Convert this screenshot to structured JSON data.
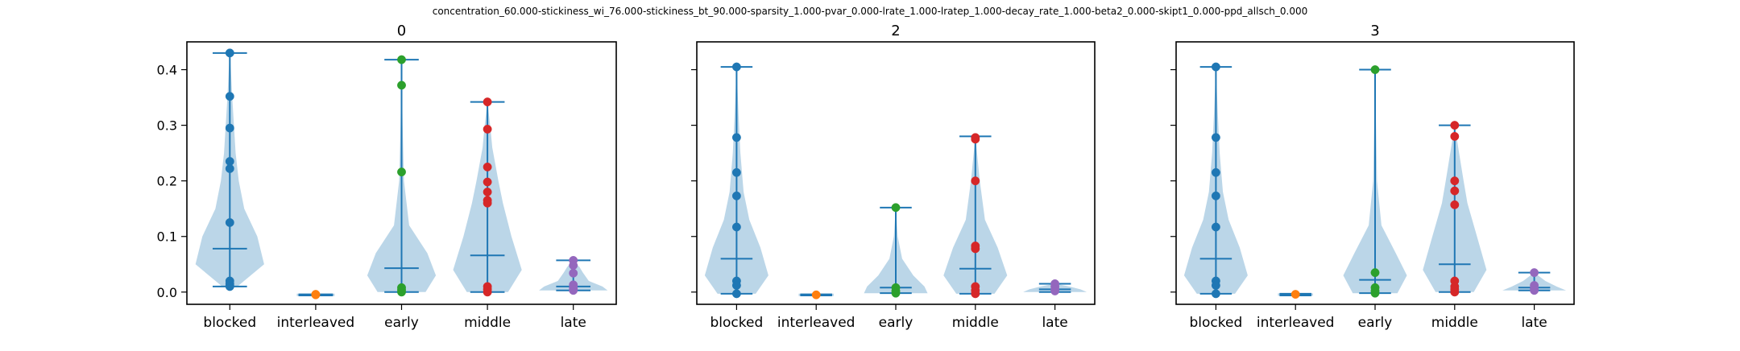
{
  "figure": {
    "suptitle": "concentration_60.000-stickiness_wi_76.000-stickiness_bt_90.000-sparsity_1.000-pvar_0.000-lrate_1.000-lratep_1.000-decay_rate_1.000-beta2_0.000-skipt1_0.000-ppd_allsch_0.000"
  },
  "chart_data": [
    {
      "type": "violin",
      "title": "0",
      "categories": [
        "blocked",
        "interleaved",
        "early",
        "middle",
        "late"
      ],
      "ylim": [
        -0.022,
        0.45
      ],
      "yticks": [
        0.0,
        0.1,
        0.2,
        0.3,
        0.4
      ],
      "ytick_labels": [
        "0.0",
        "0.1",
        "0.2",
        "0.3",
        "0.4"
      ],
      "show_ytick_labels": true,
      "grid": false,
      "colors": [
        "#1f77b4",
        "#ff7f0e",
        "#2ca02c",
        "#d62728",
        "#9467bd"
      ],
      "series": [
        {
          "min": 0.01,
          "max": 0.43,
          "mean": 0.078,
          "points": [
            0.43,
            0.352,
            0.295,
            0.235,
            0.222,
            0.125,
            0.02,
            0.015,
            0.012,
            0.01
          ],
          "density": [
            [
              0.01,
              0.22
            ],
            [
              0.05,
              1.0
            ],
            [
              0.1,
              0.8
            ],
            [
              0.15,
              0.42
            ],
            [
              0.2,
              0.26
            ],
            [
              0.25,
              0.17
            ],
            [
              0.3,
              0.12
            ],
            [
              0.35,
              0.07
            ],
            [
              0.4,
              0.03
            ],
            [
              0.43,
              0.0
            ]
          ]
        },
        {
          "min": -0.006,
          "max": -0.004,
          "mean": -0.005,
          "points": [
            -0.005,
            -0.004
          ],
          "density": [
            [
              -0.006,
              1.0
            ],
            [
              -0.004,
              1.0
            ]
          ]
        },
        {
          "min": 0.0,
          "max": 0.418,
          "mean": 0.043,
          "points": [
            0.418,
            0.372,
            0.216,
            0.008,
            0.004,
            0.0
          ],
          "density": [
            [
              0.0,
              0.7
            ],
            [
              0.03,
              1.0
            ],
            [
              0.07,
              0.75
            ],
            [
              0.12,
              0.22
            ],
            [
              0.2,
              0.07
            ],
            [
              0.3,
              0.03
            ],
            [
              0.418,
              0.0
            ]
          ]
        },
        {
          "min": 0.0,
          "max": 0.342,
          "mean": 0.066,
          "points": [
            0.342,
            0.293,
            0.225,
            0.198,
            0.18,
            0.165,
            0.16,
            0.01,
            0.005,
            0.0
          ],
          "density": [
            [
              0.0,
              0.6
            ],
            [
              0.04,
              1.0
            ],
            [
              0.1,
              0.7
            ],
            [
              0.16,
              0.45
            ],
            [
              0.2,
              0.32
            ],
            [
              0.26,
              0.14
            ],
            [
              0.3,
              0.08
            ],
            [
              0.342,
              0.0
            ]
          ]
        },
        {
          "min": 0.003,
          "max": 0.057,
          "mean": 0.01,
          "points": [
            0.057,
            0.048,
            0.034,
            0.013,
            0.008,
            0.005,
            0.003
          ],
          "density": [
            [
              0.003,
              1.0
            ],
            [
              0.01,
              0.85
            ],
            [
              0.02,
              0.45
            ],
            [
              0.035,
              0.28
            ],
            [
              0.045,
              0.18
            ],
            [
              0.057,
              0.0
            ]
          ]
        }
      ]
    },
    {
      "type": "violin",
      "title": "2",
      "categories": [
        "blocked",
        "interleaved",
        "early",
        "middle",
        "late"
      ],
      "ylim": [
        -0.022,
        0.45
      ],
      "yticks": [
        0.0,
        0.1,
        0.2,
        0.3,
        0.4
      ],
      "ytick_labels": [
        "0.0",
        "0.1",
        "0.2",
        "0.3",
        "0.4"
      ],
      "show_ytick_labels": false,
      "grid": false,
      "colors": [
        "#1f77b4",
        "#ff7f0e",
        "#2ca02c",
        "#d62728",
        "#9467bd"
      ],
      "series": [
        {
          "min": -0.003,
          "max": 0.405,
          "mean": 0.06,
          "points": [
            0.405,
            0.278,
            0.215,
            0.173,
            0.117,
            0.02,
            0.012,
            -0.003
          ],
          "density": [
            [
              -0.003,
              0.6
            ],
            [
              0.03,
              1.0
            ],
            [
              0.08,
              0.75
            ],
            [
              0.13,
              0.4
            ],
            [
              0.18,
              0.22
            ],
            [
              0.25,
              0.12
            ],
            [
              0.32,
              0.06
            ],
            [
              0.405,
              0.0
            ]
          ]
        },
        {
          "min": -0.006,
          "max": -0.004,
          "mean": -0.005,
          "points": [
            -0.005
          ],
          "density": [
            [
              -0.006,
              1.0
            ],
            [
              -0.004,
              1.0
            ]
          ]
        },
        {
          "min": -0.002,
          "max": 0.152,
          "mean": 0.008,
          "points": [
            0.152,
            0.008,
            0.002,
            -0.002
          ],
          "density": [
            [
              -0.002,
              1.0
            ],
            [
              0.01,
              0.9
            ],
            [
              0.03,
              0.55
            ],
            [
              0.06,
              0.2
            ],
            [
              0.1,
              0.06
            ],
            [
              0.152,
              0.0
            ]
          ]
        },
        {
          "min": -0.003,
          "max": 0.28,
          "mean": 0.042,
          "points": [
            0.278,
            0.275,
            0.2,
            0.083,
            0.078,
            0.01,
            0.003,
            -0.003
          ],
          "density": [
            [
              -0.003,
              0.6
            ],
            [
              0.03,
              1.0
            ],
            [
              0.08,
              0.7
            ],
            [
              0.13,
              0.3
            ],
            [
              0.2,
              0.14
            ],
            [
              0.28,
              0.0
            ]
          ]
        },
        {
          "min": 0.0,
          "max": 0.015,
          "mean": 0.005,
          "points": [
            0.015,
            0.01,
            0.005,
            0.002
          ],
          "density": [
            [
              0.0,
              1.0
            ],
            [
              0.005,
              0.8
            ],
            [
              0.01,
              0.45
            ],
            [
              0.015,
              0.0
            ]
          ]
        }
      ]
    },
    {
      "type": "violin",
      "title": "3",
      "categories": [
        "blocked",
        "interleaved",
        "early",
        "middle",
        "late"
      ],
      "ylim": [
        -0.022,
        0.45
      ],
      "yticks": [
        0.0,
        0.1,
        0.2,
        0.3,
        0.4
      ],
      "ytick_labels": [
        "0.0",
        "0.1",
        "0.2",
        "0.3",
        "0.4"
      ],
      "show_ytick_labels": false,
      "grid": false,
      "colors": [
        "#1f77b4",
        "#ff7f0e",
        "#2ca02c",
        "#d62728",
        "#9467bd"
      ],
      "series": [
        {
          "min": -0.003,
          "max": 0.405,
          "mean": 0.06,
          "points": [
            0.405,
            0.278,
            0.215,
            0.173,
            0.117,
            0.02,
            0.012,
            -0.003
          ],
          "density": [
            [
              -0.003,
              0.6
            ],
            [
              0.03,
              1.0
            ],
            [
              0.08,
              0.75
            ],
            [
              0.13,
              0.4
            ],
            [
              0.18,
              0.22
            ],
            [
              0.25,
              0.12
            ],
            [
              0.32,
              0.06
            ],
            [
              0.405,
              0.0
            ]
          ]
        },
        {
          "min": -0.006,
          "max": -0.003,
          "mean": -0.004,
          "points": [
            -0.004
          ],
          "density": [
            [
              -0.006,
              1.0
            ],
            [
              -0.003,
              1.0
            ]
          ]
        },
        {
          "min": -0.002,
          "max": 0.4,
          "mean": 0.022,
          "points": [
            0.4,
            0.035,
            0.008,
            0.002,
            -0.002
          ],
          "density": [
            [
              -0.002,
              0.7
            ],
            [
              0.03,
              1.0
            ],
            [
              0.07,
              0.65
            ],
            [
              0.12,
              0.2
            ],
            [
              0.2,
              0.06
            ],
            [
              0.3,
              0.03
            ],
            [
              0.4,
              0.0
            ]
          ]
        },
        {
          "min": 0.0,
          "max": 0.3,
          "mean": 0.05,
          "points": [
            0.3,
            0.28,
            0.2,
            0.182,
            0.157,
            0.02,
            0.01,
            0.005,
            0.0
          ],
          "density": [
            [
              0.0,
              0.6
            ],
            [
              0.04,
              1.0
            ],
            [
              0.1,
              0.7
            ],
            [
              0.16,
              0.4
            ],
            [
              0.2,
              0.28
            ],
            [
              0.25,
              0.14
            ],
            [
              0.3,
              0.0
            ]
          ]
        },
        {
          "min": 0.003,
          "max": 0.035,
          "mean": 0.008,
          "points": [
            0.035,
            0.012,
            0.006,
            0.003
          ],
          "density": [
            [
              0.003,
              1.0
            ],
            [
              0.01,
              0.7
            ],
            [
              0.02,
              0.35
            ],
            [
              0.035,
              0.0
            ]
          ]
        }
      ]
    }
  ]
}
